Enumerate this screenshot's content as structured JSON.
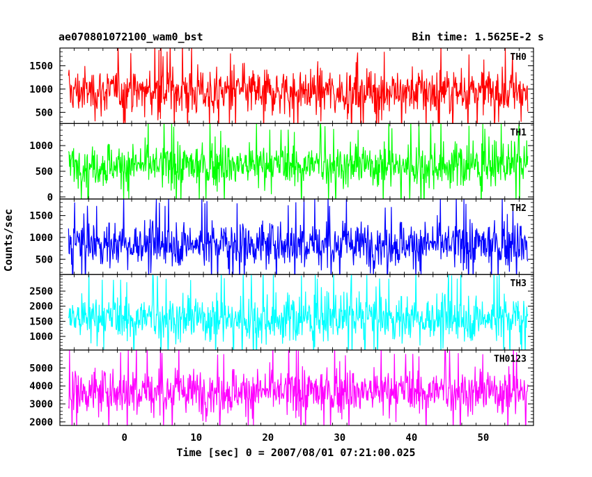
{
  "chart_data": {
    "type": "line",
    "title_left": "ae070801072100_wam0_bst",
    "title_right": "Bin time: 1.5625E-2 s",
    "xlabel": "Time [sec] 0 = 2007/08/01 07:21:00.025",
    "ylabel": "Counts/sec",
    "xlim": [
      -9,
      57
    ],
    "data_x_range": [
      -7.8,
      56.2
    ],
    "x_ticks": [
      0,
      10,
      20,
      30,
      40,
      50
    ],
    "x_tick_labels": [
      "0",
      "10",
      "20",
      "30",
      "40",
      "50"
    ],
    "grid": false,
    "panels": [
      {
        "name": "TH0",
        "color": "#ff0000",
        "ylim": [
          260,
          1880
        ],
        "y_ticks": [
          500,
          1000,
          1500
        ],
        "y_tick_labels": [
          "500",
          "1000",
          "1500"
        ],
        "mean": 950,
        "typical_min": 250,
        "typical_max": 1750
      },
      {
        "name": "TH1",
        "color": "#00ff00",
        "ylim": [
          -40,
          1430
        ],
        "y_ticks": [
          0,
          500,
          1000
        ],
        "y_tick_labels": [
          "0",
          "500",
          "1000"
        ],
        "mean": 620,
        "typical_min": 40,
        "typical_max": 1300
      },
      {
        "name": "TH2",
        "color": "#0000ff",
        "ylim": [
          150,
          1880
        ],
        "y_ticks": [
          500,
          1000,
          1500
        ],
        "y_tick_labels": [
          "500",
          "1000",
          "1500"
        ],
        "mean": 850,
        "typical_min": 250,
        "typical_max": 1800
      },
      {
        "name": "TH3",
        "color": "#00ffff",
        "ylim": [
          550,
          3050
        ],
        "y_ticks": [
          1000,
          1500,
          2000,
          2500
        ],
        "y_tick_labels": [
          "1000",
          "1500",
          "2000",
          "2500"
        ],
        "mean": 1600,
        "typical_min": 620,
        "typical_max": 2950
      },
      {
        "name": "TH0123",
        "color": "#ff00ff",
        "ylim": [
          1800,
          6000
        ],
        "y_ticks": [
          2000,
          3000,
          4000,
          5000
        ],
        "y_tick_labels": [
          "2000",
          "3000",
          "4000",
          "5000"
        ],
        "mean": 3700,
        "typical_min": 1900,
        "typical_max": 5700
      }
    ]
  }
}
